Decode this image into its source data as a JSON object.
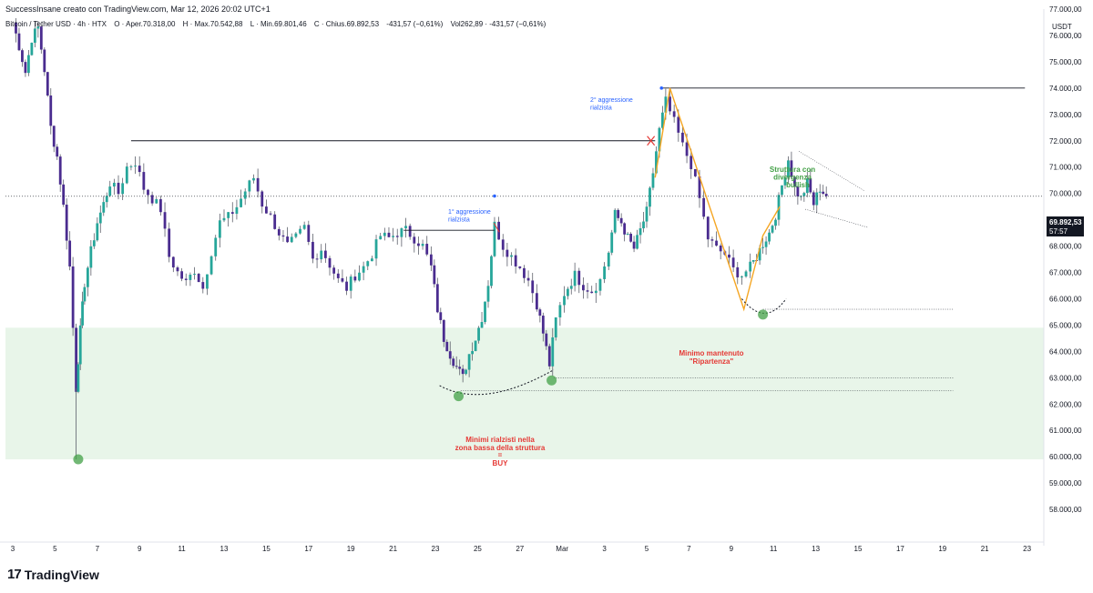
{
  "header": {
    "attribution": "SuccessInsane creato con TradingView.com, Mar 12, 2026 20:02 UTC+1",
    "symbol": "Bitcoin / Tether USD · 4h · HTX",
    "open": "O · Aper.70.318,00",
    "high": "H · Max.70.542,88",
    "low": "L · Min.69.801,46",
    "close": "C · Chius.69.892,53",
    "change": "-431,57 (−0,61%)",
    "volume": "Vol262,89 · -431,57 (−0,61%)"
  },
  "price_axis": {
    "currency": "USDT",
    "last_price": "69.892,53",
    "countdown": "57:57"
  },
  "brand": {
    "logo": "17",
    "name": "TradingView"
  },
  "colors": {
    "up": "#26a69a",
    "down": "#4a2c8f",
    "zone": "#e8f5e9",
    "annotation_green": "#43a047",
    "annotation_red": "#e53935",
    "annotation_blue": "#2962ff",
    "pattern_orange": "#f5a623",
    "line_black": "#131722"
  },
  "chart_data": {
    "type": "candlestick",
    "x_tick_labels": [
      "3",
      "5",
      "7",
      "9",
      "11",
      "13",
      "15",
      "17",
      "19",
      "21",
      "23",
      "25",
      "27",
      "Mar",
      "3",
      "5",
      "7",
      "9",
      "11",
      "13",
      "15",
      "17",
      "19",
      "21",
      "23"
    ],
    "y_tick_labels": [
      "77.000,00",
      "76.000,00",
      "75.000,00",
      "74.000,00",
      "73.000,00",
      "72.000,00",
      "71.000,00",
      "70.000,00",
      "69.000,00",
      "68.000,00",
      "67.000,00",
      "66.000,00",
      "65.000,00",
      "64.000,00",
      "63.000,00",
      "62.000,00",
      "61.000,00",
      "60.000,00",
      "59.000,00",
      "58.000,00"
    ],
    "ylim": [
      57700,
      77400
    ],
    "close_path": [
      [
        3.0,
        76500
      ],
      [
        3.3,
        75600
      ],
      [
        3.6,
        74600
      ],
      [
        3.9,
        75900
      ],
      [
        4.2,
        76300
      ],
      [
        4.5,
        74700
      ],
      [
        4.8,
        72500
      ],
      [
        5.1,
        71400
      ],
      [
        5.4,
        69500
      ],
      [
        5.7,
        67200
      ],
      [
        6.0,
        62600
      ],
      [
        6.2,
        64800
      ],
      [
        6.4,
        66600
      ],
      [
        6.7,
        67800
      ],
      [
        7.0,
        68900
      ],
      [
        7.3,
        69600
      ],
      [
        7.6,
        70400
      ],
      [
        8.0,
        70000
      ],
      [
        8.4,
        71000
      ],
      [
        8.8,
        71200
      ],
      [
        9.2,
        70200
      ],
      [
        9.6,
        69800
      ],
      [
        10.0,
        69400
      ],
      [
        10.4,
        67600
      ],
      [
        10.8,
        67000
      ],
      [
        11.2,
        66600
      ],
      [
        11.6,
        67100
      ],
      [
        12.0,
        66400
      ],
      [
        12.4,
        67800
      ],
      [
        12.8,
        68900
      ],
      [
        13.2,
        69100
      ],
      [
        13.6,
        69500
      ],
      [
        14.0,
        70100
      ],
      [
        14.4,
        70600
      ],
      [
        14.8,
        69600
      ],
      [
        15.2,
        69100
      ],
      [
        15.6,
        68500
      ],
      [
        16.0,
        68000
      ],
      [
        16.4,
        68300
      ],
      [
        16.8,
        68700
      ],
      [
        17.2,
        67500
      ],
      [
        17.6,
        67900
      ],
      [
        18.0,
        67300
      ],
      [
        18.4,
        66700
      ],
      [
        18.8,
        66400
      ],
      [
        19.2,
        66900
      ],
      [
        19.6,
        67200
      ],
      [
        20.0,
        67700
      ],
      [
        20.4,
        68400
      ],
      [
        20.8,
        68300
      ],
      [
        21.2,
        68500
      ],
      [
        21.6,
        68600
      ],
      [
        22.0,
        68300
      ],
      [
        22.4,
        68000
      ],
      [
        22.8,
        67200
      ],
      [
        23.1,
        65600
      ],
      [
        23.4,
        64500
      ],
      [
        23.7,
        63900
      ],
      [
        24.0,
        63400
      ],
      [
        24.3,
        63000
      ],
      [
        24.6,
        63900
      ],
      [
        24.9,
        64500
      ],
      [
        25.2,
        65300
      ],
      [
        25.5,
        66600
      ],
      [
        25.8,
        68800
      ],
      [
        26.2,
        68000
      ],
      [
        26.6,
        67600
      ],
      [
        27.0,
        67200
      ],
      [
        27.4,
        66700
      ],
      [
        27.8,
        65800
      ],
      [
        28.1,
        64700
      ],
      [
        28.4,
        63500
      ],
      [
        28.7,
        65200
      ],
      [
        29.1,
        66200
      ],
      [
        29.6,
        66900
      ],
      [
        30.0,
        66500
      ],
      [
        30.4,
        66300
      ],
      [
        30.8,
        66700
      ],
      [
        31.2,
        67800
      ],
      [
        31.5,
        69200
      ],
      [
        31.8,
        68900
      ],
      [
        32.1,
        68300
      ],
      [
        32.4,
        67900
      ],
      [
        32.7,
        68600
      ],
      [
        33.0,
        69300
      ],
      [
        33.3,
        70800
      ],
      [
        33.6,
        72400
      ],
      [
        33.9,
        73500
      ],
      [
        34.3,
        72700
      ],
      [
        34.7,
        71800
      ],
      [
        35.1,
        71100
      ],
      [
        35.5,
        69800
      ],
      [
        35.9,
        68300
      ],
      [
        36.3,
        67900
      ],
      [
        36.7,
        67700
      ],
      [
        37.1,
        67100
      ],
      [
        37.5,
        66900
      ],
      [
        37.9,
        67200
      ],
      [
        38.2,
        67600
      ],
      [
        38.5,
        68100
      ],
      [
        38.8,
        68500
      ],
      [
        39.1,
        69200
      ],
      [
        39.4,
        70300
      ],
      [
        39.7,
        71300
      ],
      [
        40.0,
        70200
      ],
      [
        40.3,
        69800
      ],
      [
        40.6,
        70400
      ],
      [
        40.9,
        69600
      ],
      [
        41.2,
        70200
      ],
      [
        41.5,
        69900
      ]
    ],
    "annotations": [
      {
        "text": "2° aggressione rialzista",
        "color": "blue"
      },
      {
        "text": "1° aggressione rialzista",
        "color": "blue"
      },
      {
        "text": "Struttura con divergenza bullish",
        "color": "green"
      },
      {
        "text": "Minimo mantenuto",
        "color": "red"
      },
      {
        "text": "\"Ripartenza\"",
        "color": "red"
      },
      {
        "text": "Minimi rialzisti nella",
        "color": "red"
      },
      {
        "text": "zona bassa della struttura",
        "color": "red"
      },
      {
        "text": "=",
        "color": "red"
      },
      {
        "text": "BUY",
        "color": "red"
      }
    ],
    "zone": {
      "from": 59900,
      "to": 64900
    }
  }
}
